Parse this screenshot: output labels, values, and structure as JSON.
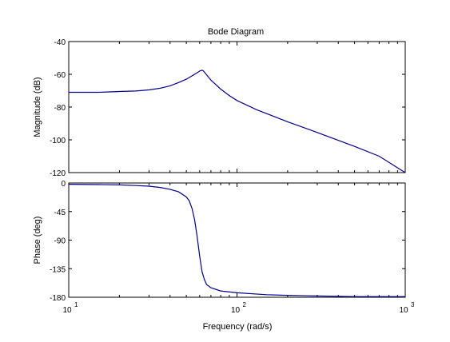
{
  "chart_data": {
    "type": "line",
    "title": "Bode Diagram",
    "xlabel": "Frequency  (rad/s)",
    "x_scale": "log",
    "x_ticks": [
      {
        "value": 10,
        "base": "10",
        "exp": "1"
      },
      {
        "value": 100,
        "base": "10",
        "exp": "2"
      },
      {
        "value": 1000,
        "base": "10",
        "exp": "3"
      }
    ],
    "xlim": [
      10,
      1000
    ],
    "grid": false,
    "panels": [
      {
        "ylabel": "Magnitude (dB)",
        "ylim": [
          -120,
          -40
        ],
        "yticks": [
          -40,
          -60,
          -80,
          -100,
          -120
        ],
        "series": [
          {
            "color": "#00008b",
            "x": [
              10,
              15,
              20,
              25,
              30,
              35,
              40,
              45,
              50,
              55,
              58,
              60,
              62,
              63,
              65,
              70,
              80,
              90,
              100,
              130,
              200,
              300,
              500,
              700,
              1000
            ],
            "y": [
              -71,
              -71,
              -70.5,
              -70.2,
              -69.5,
              -68.5,
              -67,
              -65,
              -63,
              -60.5,
              -59,
              -58,
              -57.5,
              -57.8,
              -59.5,
              -63.5,
              -69,
              -73,
              -76,
              -81.5,
              -89,
              -95.5,
              -104,
              -110,
              -120
            ]
          }
        ]
      },
      {
        "ylabel": "Phase (deg)",
        "ylim": [
          -180,
          0
        ],
        "yticks": [
          0,
          -45,
          -90,
          -135,
          -180
        ],
        "series": [
          {
            "color": "#00008b",
            "x": [
              10,
              15,
              20,
              25,
              30,
              35,
              40,
              45,
              50,
              52,
              54,
              56,
              58,
              60,
              62,
              64,
              66,
              70,
              80,
              100,
              150,
              200,
              300,
              500,
              1000
            ],
            "y": [
              -2,
              -2.5,
              -3,
              -4,
              -5,
              -7,
              -10,
              -14,
              -22,
              -28,
              -40,
              -58,
              -85,
              -115,
              -140,
              -152,
              -160,
              -165,
              -170,
              -173,
              -176,
              -177,
              -178,
              -179,
              -179
            ]
          }
        ]
      }
    ]
  }
}
